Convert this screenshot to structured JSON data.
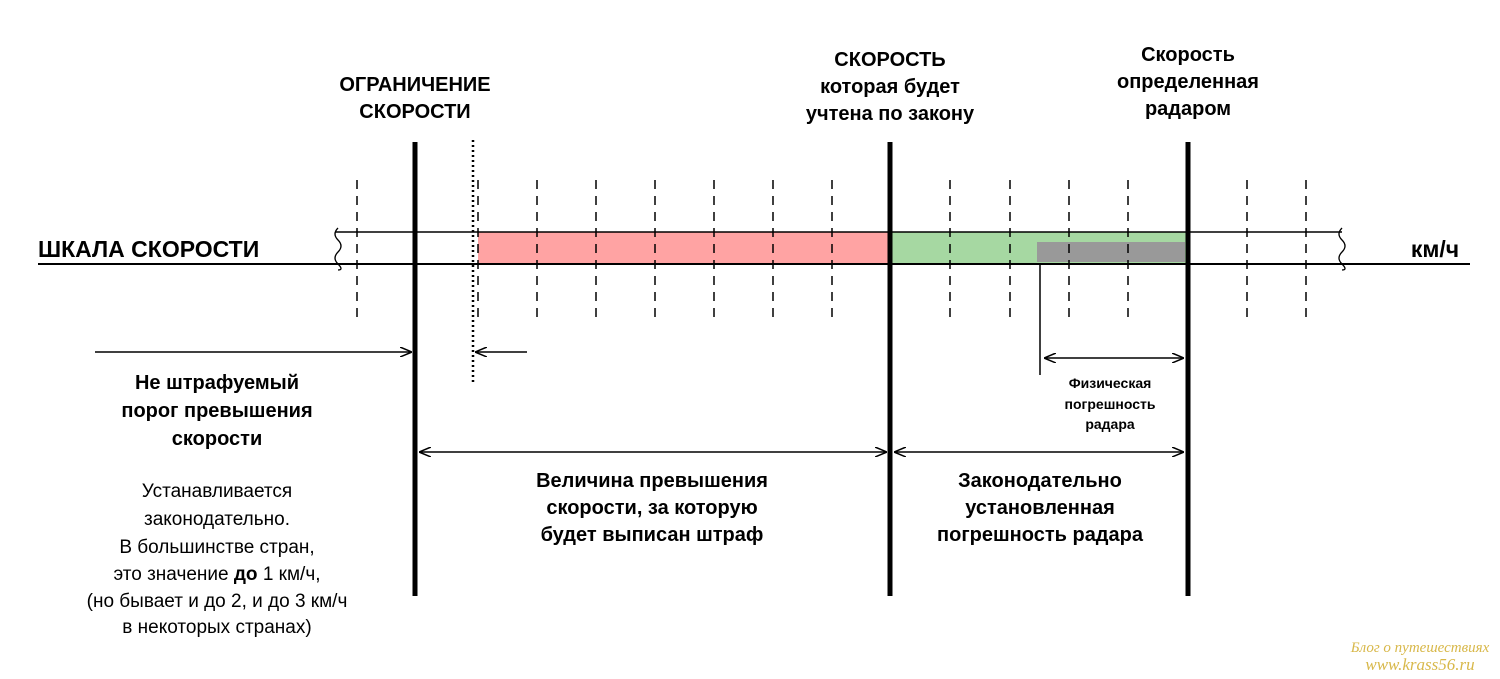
{
  "scale": {
    "label": "ШКАЛА СКОРОСТИ",
    "unit": "км/ч"
  },
  "markers": {
    "limit": [
      "ОГРАНИЧЕНИЕ",
      "СКОРОСТИ"
    ],
    "legal_speed": [
      "СКОРОСТЬ",
      "которая будет",
      "учтена по закону"
    ],
    "radar_speed": [
      "Скорость",
      "определенная",
      "радаром"
    ]
  },
  "annotations": {
    "threshold": [
      "Не штрафуемый",
      "порог превышения",
      "скорости"
    ],
    "threshold_note": {
      "lines": [
        "Устанавливается",
        "законодательно.",
        "В большинстве стран,"
      ],
      "emphasis_line": [
        "это значение ",
        "до",
        " 1 км/ч,"
      ],
      "tail": [
        "(но бывает и до 2, и до 3 км/ч",
        "в некоторых странах)"
      ]
    },
    "fine": [
      "Величина превышения",
      "скорости, за которую",
      "будет выписан штраф"
    ],
    "legal_error": [
      "Законодательно",
      "установленная",
      "погрешность радара"
    ],
    "physical_error": [
      "Физическая",
      "погрешность",
      "радара"
    ]
  },
  "watermark": [
    "Блог о путешествиях",
    "www.krass56.ru"
  ]
}
